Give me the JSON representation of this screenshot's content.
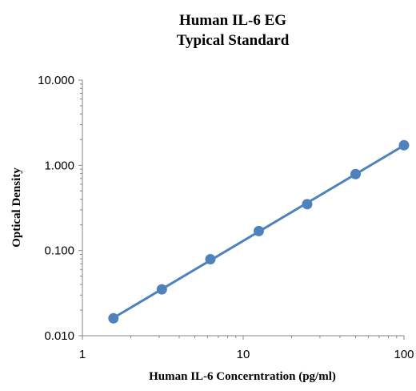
{
  "chart_data": {
    "type": "scatter",
    "title_lines": [
      "Human IL-6 EG",
      "Typical Standard"
    ],
    "xlabel": "Human IL-6 Concerntration (pg/ml)",
    "ylabel": "Optical Density",
    "x_scale": "log",
    "y_scale": "log",
    "xlim": [
      1,
      100
    ],
    "ylim": [
      0.01,
      10
    ],
    "x_ticks": [
      1,
      10,
      100
    ],
    "x_tick_labels": [
      "1",
      "10",
      "100"
    ],
    "y_ticks": [
      0.01,
      0.1,
      1,
      10
    ],
    "y_tick_labels": [
      "0.010",
      "0.100",
      "1.000",
      "10.000"
    ],
    "grid": false,
    "legend": "none",
    "series": [
      {
        "x": [
          1.56,
          3.12,
          6.25,
          12.5,
          25,
          50,
          100
        ],
        "y": [
          0.016,
          0.035,
          0.079,
          0.169,
          0.35,
          0.79,
          1.72
        ],
        "color": "#4f81bd",
        "trendline": true
      }
    ]
  }
}
